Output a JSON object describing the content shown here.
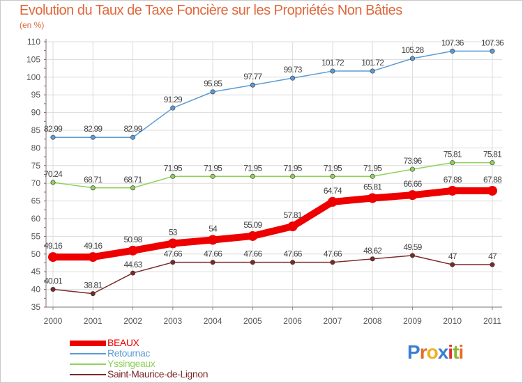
{
  "title": "Evolution du Taux de Taxe Foncière sur les Propriétés Non Bâties",
  "unit_label": "(en %)",
  "chart_data": {
    "type": "line",
    "x": [
      "2000",
      "2001",
      "2002",
      "2003",
      "2004",
      "2005",
      "2006",
      "2007",
      "2008",
      "2009",
      "2010",
      "2011"
    ],
    "ylim": [
      35,
      110
    ],
    "yticks": [
      35,
      40,
      45,
      50,
      55,
      60,
      65,
      70,
      75,
      80,
      85,
      90,
      95,
      100,
      105,
      110
    ],
    "grid": true,
    "legend_position": "bottom-left",
    "series": [
      {
        "name": "BEAUX",
        "color": "#ee0000",
        "values": [
          49.16,
          49.16,
          50.98,
          53,
          54,
          55.09,
          57.81,
          64.74,
          65.81,
          66.66,
          67.88,
          67.88
        ],
        "labels": [
          "49.16",
          "49.16",
          "50.98",
          "53",
          "54",
          "55.09",
          "57.81",
          "64.74",
          "65.81",
          "66.66",
          "67.88",
          "67.88"
        ]
      },
      {
        "name": "Retournac",
        "color": "#5b9bd5",
        "values": [
          82.99,
          82.99,
          82.99,
          91.29,
          95.85,
          97.77,
          99.73,
          101.72,
          101.72,
          105.28,
          107.36,
          107.36
        ],
        "labels": [
          "82.99",
          "82.99",
          "82.99",
          "91.29",
          "95.85",
          "97.77",
          "99.73",
          "101.72",
          "101.72",
          "105.28",
          "107.36",
          "107.36"
        ]
      },
      {
        "name": "Yssingeaux",
        "color": "#8fd15a",
        "values": [
          70.24,
          68.71,
          68.71,
          71.95,
          71.95,
          71.95,
          71.95,
          71.95,
          71.95,
          73.96,
          75.81,
          75.81
        ],
        "labels": [
          "70.24",
          "68.71",
          "68.71",
          "71.95",
          "71.95",
          "71.95",
          "71.95",
          "71.95",
          "71.95",
          "73.96",
          "75.81",
          "75.81"
        ]
      },
      {
        "name": "Saint-Maurice-de-Lignon",
        "color": "#7a2a2a",
        "values": [
          40.01,
          38.81,
          44.63,
          47.66,
          47.66,
          47.66,
          47.66,
          47.66,
          48.62,
          49.59,
          47,
          47
        ],
        "labels": [
          "40.01",
          "38.81",
          "44.63",
          "47.66",
          "47.66",
          "47.66",
          "47.66",
          "47.66",
          "48.62",
          "49.59",
          "47",
          "47"
        ]
      }
    ]
  },
  "logo": {
    "letters": [
      "P",
      "r",
      "o",
      "x",
      "i",
      "t",
      "i"
    ],
    "colors": [
      "#3a7fd0",
      "#e86a2a",
      "#f0b020",
      "#3a7fd0",
      "#e03030",
      "#88b830",
      "#e86a2a"
    ]
  }
}
